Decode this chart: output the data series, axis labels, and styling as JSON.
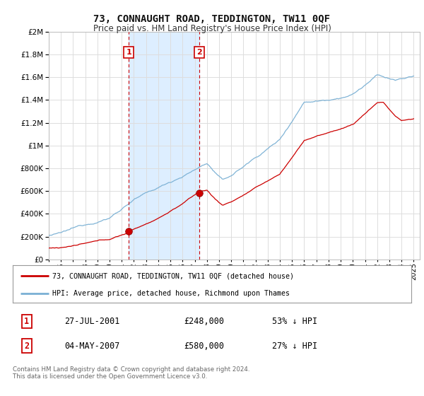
{
  "title": "73, CONNAUGHT ROAD, TEDDINGTON, TW11 0QF",
  "subtitle": "Price paid vs. HM Land Registry's House Price Index (HPI)",
  "legend_line1": "73, CONNAUGHT ROAD, TEDDINGTON, TW11 0QF (detached house)",
  "legend_line2": "HPI: Average price, detached house, Richmond upon Thames",
  "footer": "Contains HM Land Registry data © Crown copyright and database right 2024.\nThis data is licensed under the Open Government Licence v3.0.",
  "transaction1_date": "27-JUL-2001",
  "transaction1_price": "£248,000",
  "transaction1_hpi": "53% ↓ HPI",
  "transaction2_date": "04-MAY-2007",
  "transaction2_price": "£580,000",
  "transaction2_hpi": "27% ↓ HPI",
  "line1_color": "#cc0000",
  "line2_color": "#7ab0d4",
  "shade_color": "#ddeeff",
  "vline_color": "#cc0000",
  "marker_box_color": "#cc0000",
  "background_color": "#ffffff",
  "grid_color": "#dddddd",
  "ylim": [
    0,
    2000000
  ],
  "xlim_start": 1995.0,
  "xlim_end": 2025.5,
  "transaction1_x": 2001.57,
  "transaction1_y": 248000,
  "transaction2_x": 2007.37,
  "transaction2_y": 580000
}
